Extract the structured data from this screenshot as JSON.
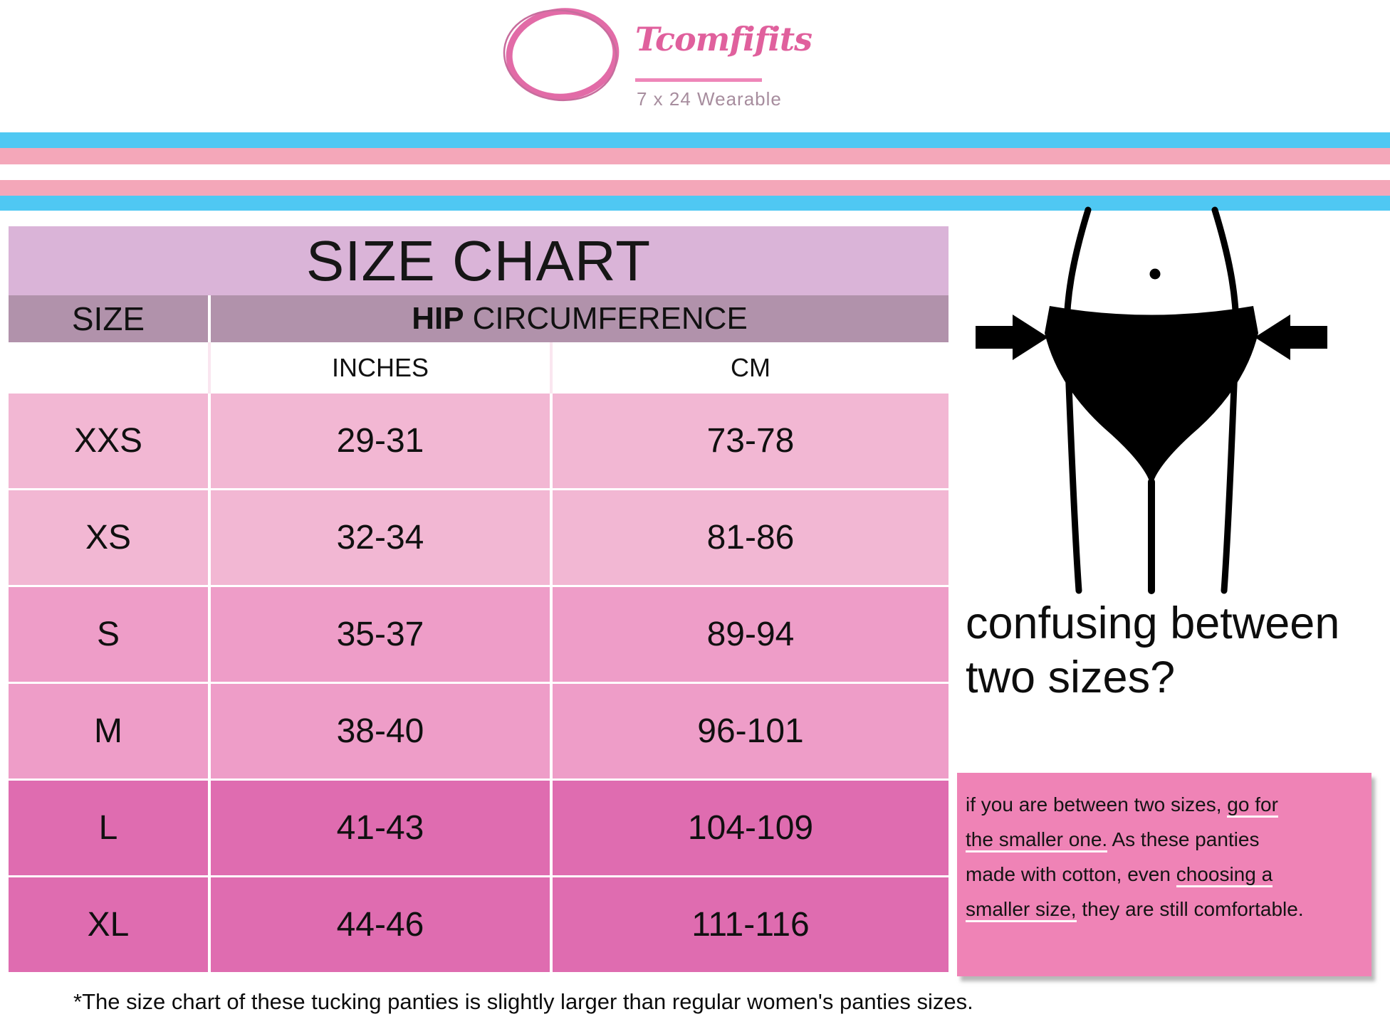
{
  "brand": {
    "name": "Tcomfifits",
    "tagline": "7 x 24 Wearable"
  },
  "size_chart": {
    "title": "SIZE CHART",
    "header": {
      "size_col": "SIZE",
      "hip_bold": "HIP",
      "hip_rest": "CIRCUMFERENCE"
    },
    "units": {
      "inches": "INCHES",
      "cm": "CM"
    },
    "rows": [
      {
        "size": "XXS",
        "inches": "29-31",
        "cm": "73-78",
        "shade": "light"
      },
      {
        "size": "XS",
        "inches": "32-34",
        "cm": "81-86",
        "shade": "light"
      },
      {
        "size": "S",
        "inches": "35-37",
        "cm": "89-94",
        "shade": "medium"
      },
      {
        "size": "M",
        "inches": "38-40",
        "cm": "96-101",
        "shade": "medium"
      },
      {
        "size": "L",
        "inches": "41-43",
        "cm": "104-109",
        "shade": "dark"
      },
      {
        "size": "XL",
        "inches": "44-46",
        "cm": "111-116",
        "shade": "dark"
      }
    ]
  },
  "chart_data": {
    "type": "table",
    "title": "SIZE CHART",
    "columns": [
      "SIZE",
      "HIP CIRCUMFERENCE (INCHES)",
      "HIP CIRCUMFERENCE (CM)"
    ],
    "rows": [
      [
        "XXS",
        "29-31",
        "73-78"
      ],
      [
        "XS",
        "32-34",
        "81-86"
      ],
      [
        "S",
        "35-37",
        "89-94"
      ],
      [
        "M",
        "38-40",
        "96-101"
      ],
      [
        "L",
        "41-43",
        "104-109"
      ],
      [
        "XL",
        "44-46",
        "111-116"
      ]
    ]
  },
  "sidebar": {
    "question_line1": "confusing between",
    "question_line2": "two sizes?",
    "tip_lines": [
      {
        "segments": [
          {
            "text": "if you are between two sizes, ",
            "underline": false
          },
          {
            "text": "go for",
            "underline": true
          }
        ]
      },
      {
        "segments": [
          {
            "text": "the smaller one.",
            "underline": true
          },
          {
            "text": " As these panties",
            "underline": false
          }
        ]
      },
      {
        "segments": [
          {
            "text": "made with cotton, even ",
            "underline": false
          },
          {
            "text": "choosing a",
            "underline": true
          }
        ]
      },
      {
        "segments": [
          {
            "text": "smaller size,",
            "underline": true
          },
          {
            "text": " they are still comfortable.",
            "underline": false
          }
        ]
      }
    ]
  },
  "footnote": "*The size chart of these tucking panties is slightly larger than regular women's panties sizes.",
  "colors": {
    "brand_pink": "#e0609d",
    "brand_circle": "#e26ba7",
    "brand_line": "#ee86b9",
    "tagline_gray": "#a78d9e",
    "stripe_blue": "#4fc8f3",
    "stripe_pink": "#f4a7b9",
    "band_title": "#dab4d8",
    "band_head": "#b192ab",
    "row_light": "#f2b7d3",
    "row_medium": "#ee9dc8",
    "row_dark": "#df6cb0",
    "tip_pink": "#ef83b6"
  }
}
